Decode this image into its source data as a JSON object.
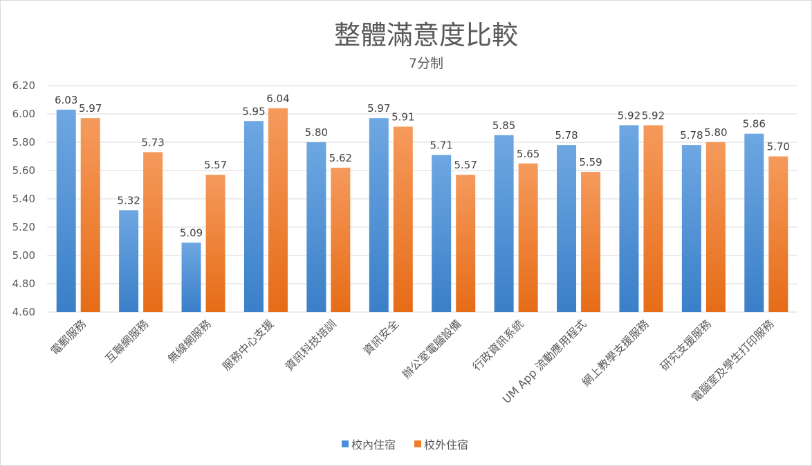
{
  "chart_data": {
    "type": "bar",
    "title": "整體滿意度比較",
    "subtitle": "7分制",
    "categories": [
      "電郵服務",
      "互聯網服務",
      "無線網服務",
      "服務中心支援",
      "資訊科技培訓",
      "資訊安全",
      "辦公室電腦設備",
      "行政資訊系統",
      "UM App 流動應用程式",
      "網上教學支援服務",
      "研究支援服務",
      "電腦室及學生打印服務"
    ],
    "series": [
      {
        "name": "校內住宿",
        "color": "#4a8fd6",
        "values": [
          6.03,
          5.32,
          5.09,
          5.95,
          5.8,
          5.97,
          5.71,
          5.85,
          5.78,
          5.92,
          5.78,
          5.86
        ],
        "labels": [
          "6.03",
          "5.32",
          "5.09",
          "5.95",
          "5.80",
          "5.97",
          "5.71",
          "5.85",
          "5.78",
          "5.92",
          "5.78",
          "5.86"
        ]
      },
      {
        "name": "校外住宿",
        "color": "#f07c2a",
        "values": [
          5.97,
          5.73,
          5.57,
          6.04,
          5.62,
          5.91,
          5.57,
          5.65,
          5.59,
          5.92,
          5.8,
          5.7
        ],
        "labels": [
          "5.97",
          "5.73",
          "5.57",
          "6.04",
          "5.62",
          "5.91",
          "5.57",
          "5.65",
          "5.59",
          "5.92",
          "5.80",
          "5.70"
        ]
      }
    ],
    "ylim": [
      4.6,
      6.2
    ],
    "yticks": [
      "4.60",
      "4.80",
      "5.00",
      "5.20",
      "5.40",
      "5.60",
      "5.80",
      "6.00",
      "6.20"
    ],
    "grid": true,
    "legend": "bottom"
  }
}
